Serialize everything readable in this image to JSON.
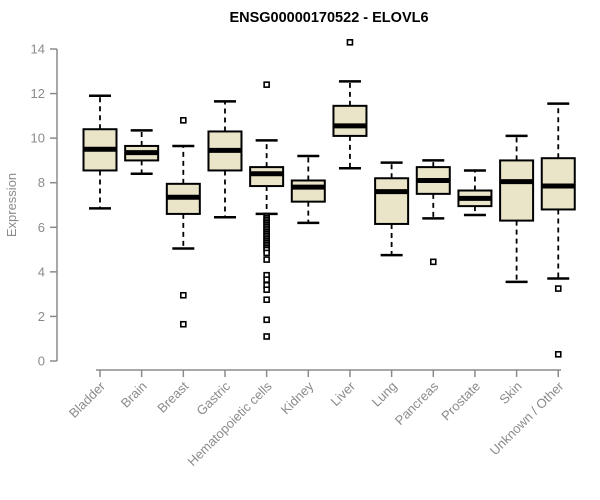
{
  "chart_data": {
    "type": "boxplot",
    "title": "ENSG00000170522 - ELOVL6",
    "xlabel": "",
    "ylabel": "Expression",
    "ylim": [
      0,
      14
    ],
    "yticks": [
      0,
      2,
      4,
      6,
      8,
      10,
      12,
      14
    ],
    "grid": false,
    "legend": "none",
    "categories": [
      "Bladder",
      "Brain",
      "Breast",
      "Gastric",
      "Hematopoietic cells",
      "Kidney",
      "Liver",
      "Lung",
      "Pancreas",
      "Prostate",
      "Skin",
      "Unknown / Other"
    ],
    "series": [
      {
        "name": "Bladder",
        "whisker_low": 6.85,
        "q1": 8.55,
        "median": 9.5,
        "q3": 10.4,
        "whisker_high": 11.9,
        "outliers": []
      },
      {
        "name": "Brain",
        "whisker_low": 8.4,
        "q1": 9.0,
        "median": 9.35,
        "q3": 9.65,
        "whisker_high": 10.35,
        "outliers": []
      },
      {
        "name": "Breast",
        "whisker_low": 5.05,
        "q1": 6.6,
        "median": 7.35,
        "q3": 7.95,
        "whisker_high": 9.65,
        "outliers": [
          10.8,
          2.95,
          1.65
        ]
      },
      {
        "name": "Gastric",
        "whisker_low": 6.45,
        "q1": 8.55,
        "median": 9.45,
        "q3": 10.3,
        "whisker_high": 11.65,
        "outliers": []
      },
      {
        "name": "Hematopoietic cells",
        "whisker_low": 6.6,
        "q1": 7.85,
        "median": 8.4,
        "q3": 8.7,
        "whisker_high": 9.9,
        "outliers": [
          12.4,
          6.5,
          6.42,
          6.34,
          6.26,
          6.18,
          6.1,
          6.02,
          5.94,
          5.86,
          5.78,
          5.7,
          5.62,
          5.54,
          5.46,
          5.38,
          5.3,
          5.22,
          5.14,
          5.06,
          4.98,
          4.85,
          4.55,
          3.85,
          3.65,
          3.4,
          3.2,
          2.75,
          1.85,
          1.1
        ]
      },
      {
        "name": "Kidney",
        "whisker_low": 6.2,
        "q1": 7.15,
        "median": 7.8,
        "q3": 8.1,
        "whisker_high": 9.2,
        "outliers": []
      },
      {
        "name": "Liver",
        "whisker_low": 8.65,
        "q1": 10.1,
        "median": 10.55,
        "q3": 11.45,
        "whisker_high": 12.55,
        "outliers": [
          14.3
        ]
      },
      {
        "name": "Lung",
        "whisker_low": 4.75,
        "q1": 6.15,
        "median": 7.6,
        "q3": 8.2,
        "whisker_high": 8.9,
        "outliers": []
      },
      {
        "name": "Pancreas",
        "whisker_low": 6.4,
        "q1": 7.5,
        "median": 8.1,
        "q3": 8.7,
        "whisker_high": 9.0,
        "outliers": [
          4.45
        ]
      },
      {
        "name": "Prostate",
        "whisker_low": 6.55,
        "q1": 6.95,
        "median": 7.3,
        "q3": 7.65,
        "whisker_high": 8.55,
        "outliers": []
      },
      {
        "name": "Skin",
        "whisker_low": 3.55,
        "q1": 6.3,
        "median": 8.05,
        "q3": 9.0,
        "whisker_high": 10.1,
        "outliers": []
      },
      {
        "name": "Unknown / Other",
        "whisker_low": 3.7,
        "q1": 6.8,
        "median": 7.85,
        "q3": 9.1,
        "whisker_high": 11.55,
        "outliers": [
          3.25,
          0.3
        ]
      }
    ],
    "colors": {
      "background": "#FFFFFF",
      "box_fill": "#EAE5C9",
      "box_border": "#000000",
      "median": "#000000",
      "whisker": "#000000",
      "outlier_fill": "#FFFFFF",
      "outlier_border": "#000000",
      "axis": "#8B8B8B",
      "title": "#000000"
    }
  }
}
